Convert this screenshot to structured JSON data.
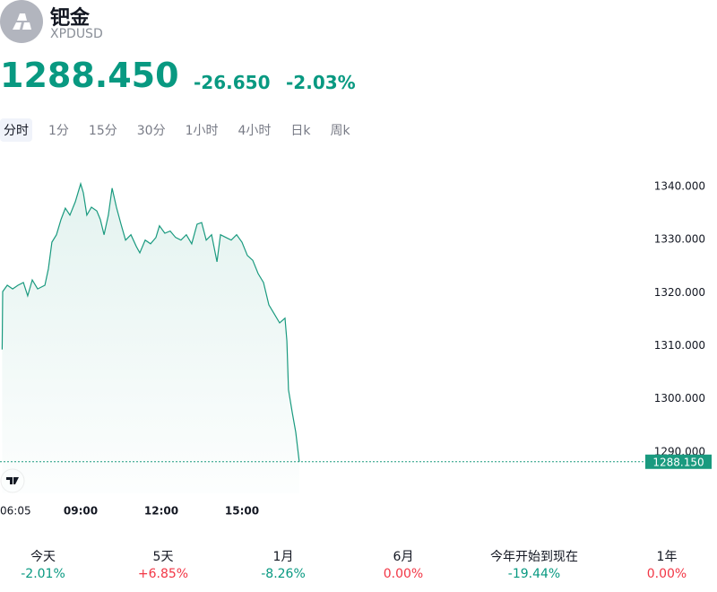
{
  "header": {
    "title": "钯金",
    "symbol": "XPDUSD",
    "price": "1288.450",
    "change": "-26.650",
    "change_percent": "-2.03%",
    "color": "#089981"
  },
  "tabs": [
    "分时",
    "1分",
    "15分",
    "30分",
    "1小时",
    "4小时",
    "日k",
    "周k"
  ],
  "active_tab": 0,
  "chart_data": {
    "type": "line",
    "color": "#1a9a7f",
    "x": [
      6.08,
      6.1,
      6.27,
      6.47,
      6.67,
      6.87,
      7.03,
      7.2,
      7.4,
      7.67,
      7.8,
      7.93,
      8.1,
      8.27,
      8.43,
      8.6,
      8.8,
      9.0,
      9.1,
      9.23,
      9.4,
      9.6,
      9.73,
      9.87,
      10.03,
      10.17,
      10.33,
      10.5,
      10.67,
      10.87,
      11.07,
      11.2,
      11.4,
      11.6,
      11.8,
      11.93,
      12.13,
      12.33,
      12.53,
      12.73,
      12.93,
      13.13,
      13.33,
      13.5,
      13.67,
      13.87,
      14.07,
      14.2,
      14.4,
      14.6,
      14.8,
      15.0,
      15.2,
      15.4,
      15.6,
      15.8,
      16.0,
      16.2,
      16.4,
      16.6,
      16.67,
      16.73,
      16.87,
      17.0,
      17.13
    ],
    "values": [
      1309.3,
      1320.2,
      1321.4,
      1320.7,
      1321.4,
      1321.9,
      1319.4,
      1322.4,
      1320.7,
      1321.4,
      1324.5,
      1329.5,
      1330.9,
      1333.8,
      1335.9,
      1334.6,
      1337.1,
      1340.5,
      1338.8,
      1334.6,
      1336.1,
      1335.4,
      1333.8,
      1330.9,
      1334.6,
      1339.7,
      1336.1,
      1332.9,
      1329.9,
      1330.9,
      1328.7,
      1327.5,
      1329.9,
      1329.2,
      1330.4,
      1332.6,
      1331.2,
      1331.6,
      1330.4,
      1329.9,
      1330.9,
      1329.2,
      1332.9,
      1333.2,
      1329.9,
      1330.9,
      1325.8,
      1330.9,
      1330.4,
      1329.9,
      1330.9,
      1329.5,
      1327.0,
      1326.1,
      1323.6,
      1321.9,
      1317.7,
      1316.0,
      1314.3,
      1315.2,
      1310.9,
      1301.7,
      1297.4,
      1293.7,
      1288.15
    ],
    "xlim": [
      6.0,
      30.0
    ],
    "xticks": [
      {
        "value": 6.0833,
        "label": "06:05"
      },
      {
        "value": 9,
        "label": "09:00"
      },
      {
        "value": 12,
        "label": "12:00"
      },
      {
        "value": 15,
        "label": "15:00"
      }
    ],
    "ylim": [
      1282.2,
      1346.4
    ],
    "yticks": [
      {
        "value": 1290,
        "label": "1290.000"
      },
      {
        "value": 1300,
        "label": "1300.000"
      },
      {
        "value": 1310,
        "label": "1310.000"
      },
      {
        "value": 1320,
        "label": "1320.000"
      },
      {
        "value": 1330,
        "label": "1330.000"
      },
      {
        "value": 1340,
        "label": "1340.000"
      }
    ],
    "last_price": {
      "value": 1288.15,
      "label": "1288.150"
    }
  },
  "performance": [
    {
      "label": "今天",
      "value": "-2.01%",
      "color": "#089981"
    },
    {
      "label": "5天",
      "value": "+6.85%",
      "color": "#f23645"
    },
    {
      "label": "1月",
      "value": "-8.26%",
      "color": "#089981"
    },
    {
      "label": "6月",
      "value": "0.00%",
      "color": "#f23645"
    },
    {
      "label": "今年开始到现在",
      "value": "-19.44%",
      "color": "#089981"
    },
    {
      "label": "1年",
      "value": "0.00%",
      "color": "#f23645"
    }
  ]
}
